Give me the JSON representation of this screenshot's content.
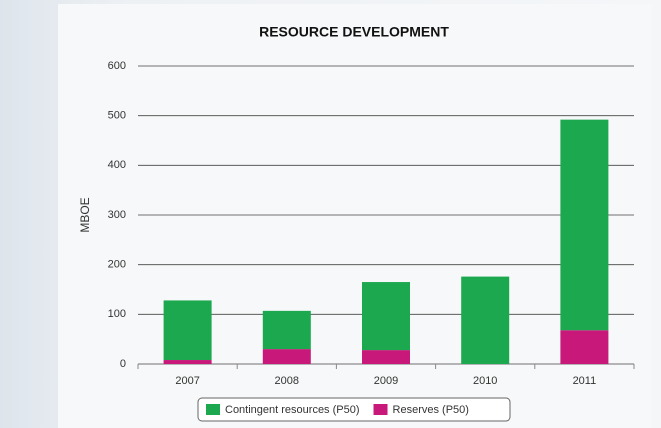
{
  "chart_data": {
    "type": "stacked_bar",
    "title": "RESOURCE DEVELOPMENT",
    "y_label": "MBOE",
    "categories": [
      "2007",
      "2008",
      "2009",
      "2010",
      "2011"
    ],
    "series": [
      {
        "name": "Contingent resources (P50)",
        "color": "#1ba84e",
        "values": [
          120,
          77,
          137,
          176,
          424
        ]
      },
      {
        "name": "Reserves (P50)",
        "color": "#c8197a",
        "values": [
          8,
          30,
          28,
          0,
          68
        ]
      }
    ],
    "ylim": [
      0,
      600
    ],
    "yticks": [
      0,
      100,
      200,
      300,
      400,
      500,
      600
    ],
    "grid": true,
    "legend": "bottom"
  }
}
